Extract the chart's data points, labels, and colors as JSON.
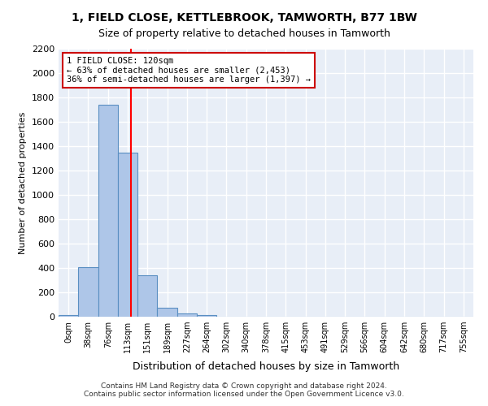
{
  "title_line1": "1, FIELD CLOSE, KETTLEBROOK, TAMWORTH, B77 1BW",
  "title_line2": "Size of property relative to detached houses in Tamworth",
  "xlabel": "Distribution of detached houses by size in Tamworth",
  "ylabel": "Number of detached properties",
  "footer_line1": "Contains HM Land Registry data © Crown copyright and database right 2024.",
  "footer_line2": "Contains public sector information licensed under the Open Government Licence v3.0.",
  "bin_labels": [
    "0sqm",
    "38sqm",
    "76sqm",
    "113sqm",
    "151sqm",
    "189sqm",
    "227sqm",
    "264sqm",
    "302sqm",
    "340sqm",
    "378sqm",
    "415sqm",
    "453sqm",
    "491sqm",
    "529sqm",
    "566sqm",
    "604sqm",
    "642sqm",
    "680sqm",
    "717sqm",
    "755sqm"
  ],
  "bar_heights": [
    15,
    410,
    1740,
    1345,
    340,
    75,
    30,
    15,
    0,
    0,
    0,
    0,
    0,
    0,
    0,
    0,
    0,
    0,
    0,
    0,
    0
  ],
  "bar_color": "#aec6e8",
  "bar_edge_color": "#5a8fc2",
  "background_color": "#e8eef7",
  "grid_color": "#ffffff",
  "red_line_x": 3.16,
  "annotation_text": "1 FIELD CLOSE: 120sqm\n← 63% of detached houses are smaller (2,453)\n36% of semi-detached houses are larger (1,397) →",
  "annotation_box_color": "#ffffff",
  "annotation_border_color": "#cc0000",
  "ylim": [
    0,
    2200
  ],
  "yticks": [
    0,
    200,
    400,
    600,
    800,
    1000,
    1200,
    1400,
    1600,
    1800,
    2000,
    2200
  ]
}
